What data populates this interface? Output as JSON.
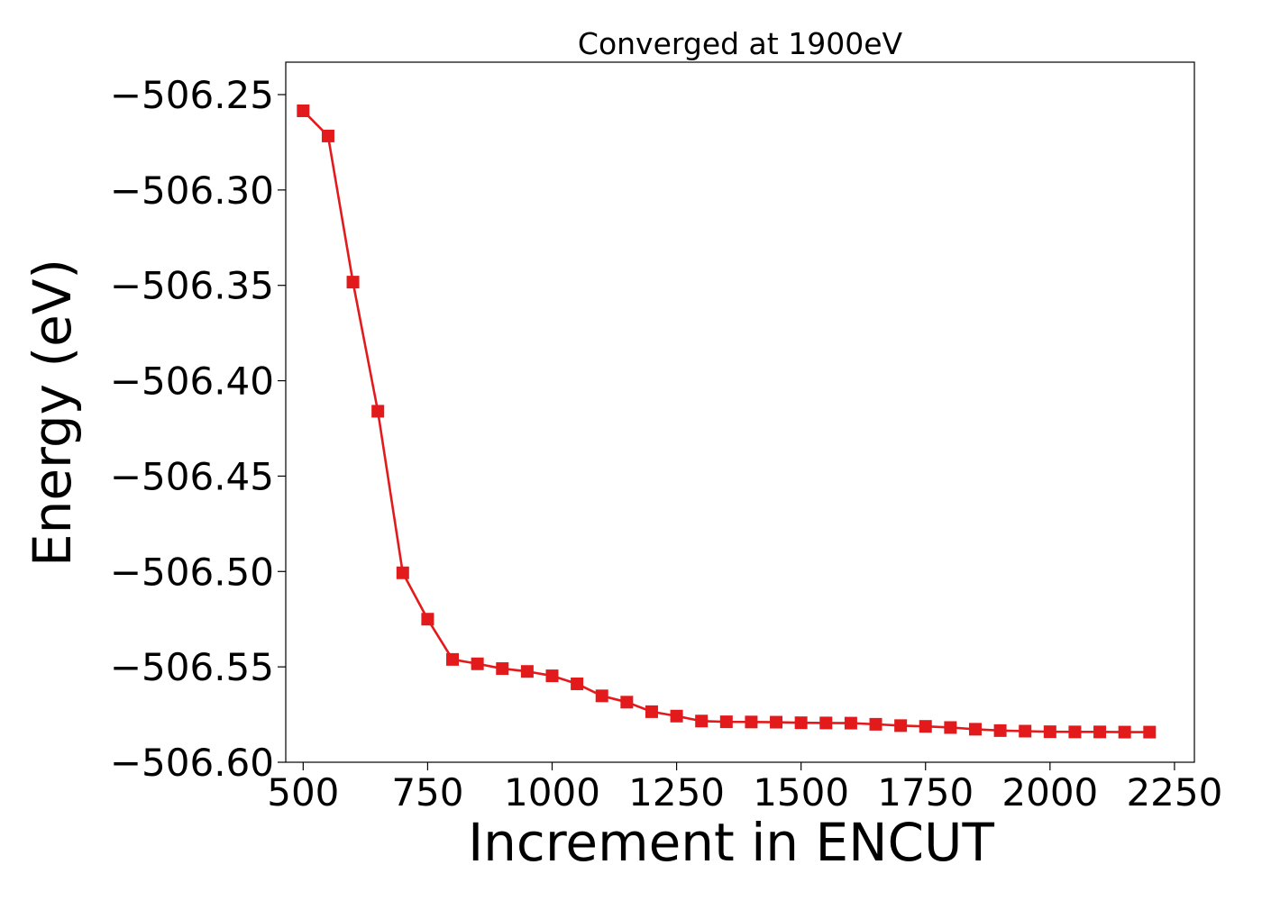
{
  "chart_data": {
    "type": "line",
    "title": "Converged at 1900eV",
    "xlabel": "Increment in ENCUT",
    "ylabel": "Energy (eV)",
    "xlim": [
      465,
      2290
    ],
    "ylim": [
      -506.6,
      -506.233
    ],
    "xticks": [
      500,
      750,
      1000,
      1250,
      1500,
      1750,
      2000,
      2250
    ],
    "yticks": [
      -506.25,
      -506.3,
      -506.35,
      -506.4,
      -506.45,
      -506.5,
      -506.55,
      -506.6
    ],
    "ytick_labels": [
      "−506.25",
      "−506.30",
      "−506.35",
      "−506.40",
      "−506.45",
      "−506.50",
      "−506.55",
      "−506.60"
    ],
    "grid": false,
    "series": [
      {
        "color": "#e31a1c",
        "marker": "square",
        "x": [
          500,
          550,
          600,
          650,
          700,
          750,
          800,
          850,
          900,
          950,
          1000,
          1050,
          1100,
          1150,
          1200,
          1250,
          1300,
          1350,
          1400,
          1450,
          1500,
          1550,
          1600,
          1650,
          1700,
          1750,
          1800,
          1850,
          1900,
          1950,
          2000,
          2050,
          2100,
          2150,
          2200
        ],
        "y": [
          -506.2585,
          -506.2717,
          -506.3483,
          -506.416,
          -506.5007,
          -506.525,
          -506.5461,
          -506.5484,
          -506.5509,
          -506.5524,
          -506.5547,
          -506.5589,
          -506.5652,
          -506.5685,
          -506.5735,
          -506.5758,
          -506.5784,
          -506.5788,
          -506.5789,
          -506.579,
          -506.5793,
          -506.5794,
          -506.5795,
          -506.5801,
          -506.5808,
          -506.5812,
          -506.5818,
          -506.5827,
          -506.5834,
          -506.5837,
          -506.584,
          -506.5841,
          -506.5841,
          -506.5842,
          -506.5842
        ]
      }
    ]
  }
}
